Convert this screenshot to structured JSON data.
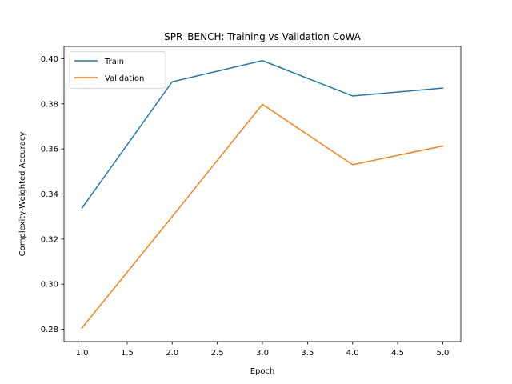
{
  "chart_data": {
    "type": "line",
    "title": "SPR_BENCH: Training vs Validation CoWA",
    "xlabel": "Epoch",
    "ylabel": "Complexity-Weighted Accuracy",
    "xlim": [
      0.8,
      5.2
    ],
    "ylim": [
      0.2745,
      0.4055
    ],
    "xticks": [
      1.0,
      1.5,
      2.0,
      2.5,
      3.0,
      3.5,
      4.0,
      4.5,
      5.0
    ],
    "xtick_labels": [
      "1.0",
      "1.5",
      "2.0",
      "2.5",
      "3.0",
      "3.5",
      "4.0",
      "4.5",
      "5.0"
    ],
    "yticks": [
      0.28,
      0.3,
      0.32,
      0.34,
      0.36,
      0.38,
      0.4
    ],
    "ytick_labels": [
      "0.28",
      "0.30",
      "0.32",
      "0.34",
      "0.36",
      "0.38",
      "0.40"
    ],
    "grid": false,
    "legend_position": "top-left",
    "x": [
      1,
      2,
      3,
      4,
      5
    ],
    "series": [
      {
        "name": "Train",
        "color": "#1f77b4",
        "values": [
          0.3338,
          0.3898,
          0.3992,
          0.3835,
          0.387
        ]
      },
      {
        "name": "Validation",
        "color": "#ff7f0e",
        "values": [
          0.2806,
          0.33,
          0.3798,
          0.353,
          0.3613
        ]
      }
    ]
  }
}
